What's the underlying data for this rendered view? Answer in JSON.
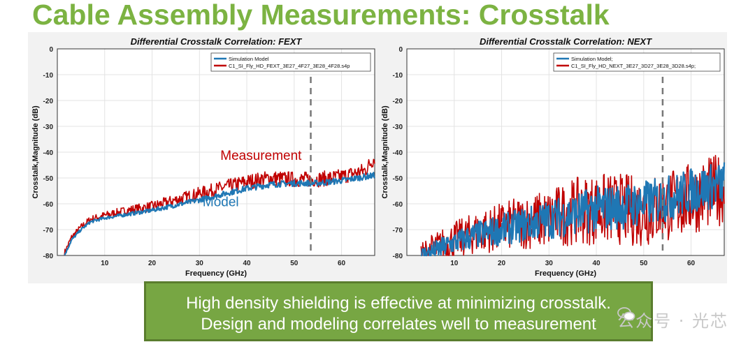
{
  "slide": {
    "title": "Cable Assembly Measurements: Crosstalk",
    "callout_line1": "High density shielding is effective at minimizing crosstalk.",
    "callout_line2": "Design and modeling correlates well to measurement",
    "watermark": "公众号 · 光芯"
  },
  "colors": {
    "title": "#7cb342",
    "simulation": "#1f77b4",
    "measurement": "#c00000",
    "callout_bg": "#77a643"
  },
  "chart_data": [
    {
      "type": "line",
      "title": "Differential Crosstalk Correlation: FEXT",
      "xlabel": "Frequency (GHz)",
      "ylabel": "Crosstalk,Magnitude (dB)",
      "xlim": [
        0,
        67
      ],
      "ylim": [
        -80,
        0
      ],
      "xticks": [
        10,
        20,
        30,
        40,
        50,
        60
      ],
      "yticks": [
        0,
        -10,
        -20,
        -30,
        -40,
        -50,
        -60,
        -70,
        -80
      ],
      "grid": true,
      "legend_position": "top-right",
      "vline_x": 53.5,
      "annotations": [
        {
          "text": "Measurement",
          "x": 43,
          "y": -43,
          "color": "#c00000"
        },
        {
          "text": "Model",
          "x": 34.5,
          "y": -61,
          "color": "#1f77b4"
        }
      ],
      "series": [
        {
          "name": "Simulation Model",
          "color": "#1f77b4",
          "noise": 1.2,
          "x": [
            1.5,
            3,
            5,
            7,
            10,
            15,
            20,
            30,
            40,
            45,
            50,
            55,
            60,
            65,
            67
          ],
          "y": [
            -80,
            -74,
            -70,
            -67,
            -65.5,
            -64,
            -62.5,
            -58.5,
            -54,
            -52.5,
            -52,
            -52,
            -51,
            -49.5,
            -49
          ]
        },
        {
          "name": "C1_SI_Fly_HD_FEXT_3E27_4F27_3E28_4F28.s4p",
          "color": "#c00000",
          "noise": 3,
          "x": [
            1.5,
            3,
            5,
            7,
            10,
            15,
            20,
            30,
            40,
            45,
            50,
            55,
            60,
            65,
            67
          ],
          "y": [
            -79,
            -73,
            -69,
            -66,
            -64.5,
            -62.5,
            -61,
            -56,
            -51.5,
            -50,
            -50.5,
            -50.5,
            -49.5,
            -47,
            -42
          ]
        }
      ]
    },
    {
      "type": "line",
      "title": "Differential Crosstalk Correlation: NEXT",
      "xlabel": "Frequency (GHz)",
      "ylabel": "Crosstalk,Magnitude (dB)",
      "xlim": [
        0,
        67
      ],
      "ylim": [
        -80,
        0
      ],
      "xticks": [
        10,
        20,
        30,
        40,
        50,
        60
      ],
      "yticks": [
        0,
        -10,
        -20,
        -30,
        -40,
        -50,
        -60,
        -70,
        -80
      ],
      "grid": true,
      "legend_position": "top-right",
      "vline_x": 54,
      "series": [
        {
          "name": "Simulation Model;",
          "color": "#1f77b4",
          "noise": 9,
          "x": [
            3,
            5,
            10,
            15,
            20,
            25,
            30,
            35,
            40,
            45,
            50,
            55,
            60,
            65,
            67
          ],
          "y": [
            -80,
            -79,
            -75,
            -72,
            -70,
            -68,
            -66,
            -64,
            -62,
            -61,
            -60,
            -58,
            -55,
            -53,
            -52
          ]
        },
        {
          "name": "C1_SI_Fly_HD_NEXT_3E27_3D27_3E28_3D28.s4p;",
          "color": "#c00000",
          "noise": 14,
          "x": [
            3,
            5,
            10,
            15,
            20,
            25,
            30,
            35,
            40,
            45,
            50,
            55,
            60,
            65,
            67
          ],
          "y": [
            -80,
            -78,
            -74,
            -71,
            -69,
            -67,
            -66,
            -63,
            -62,
            -62,
            -63,
            -61,
            -58,
            -55,
            -54
          ]
        }
      ]
    }
  ]
}
